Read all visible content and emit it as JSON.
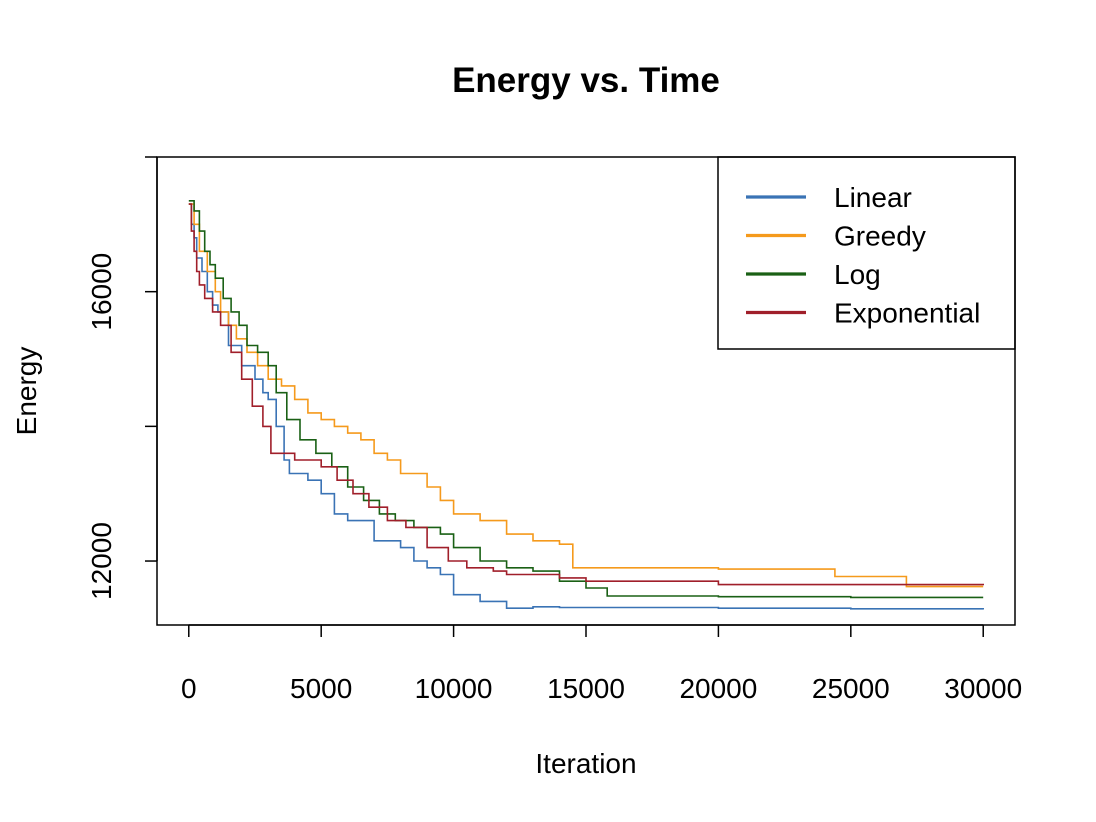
{
  "chart_data": {
    "type": "line",
    "title": "Energy vs. Time",
    "xlabel": "Iteration",
    "ylabel": "Energy",
    "xlim": [
      -1200,
      31200
    ],
    "ylim": [
      11050,
      18000
    ],
    "xticks": [
      0,
      5000,
      10000,
      15000,
      20000,
      25000,
      30000
    ],
    "yticks_labeled": [
      12000,
      16000
    ],
    "yticks": [
      12000,
      14000,
      16000,
      18000
    ],
    "legend_position": "top-right",
    "series": [
      {
        "name": "Linear",
        "color": "#3A73B5",
        "points": [
          [
            0,
            17300
          ],
          [
            100,
            17000
          ],
          [
            200,
            16800
          ],
          [
            300,
            16500
          ],
          [
            500,
            16300
          ],
          [
            700,
            16000
          ],
          [
            900,
            15800
          ],
          [
            1100,
            15700
          ],
          [
            1500,
            15200
          ],
          [
            2000,
            14900
          ],
          [
            2500,
            14700
          ],
          [
            2800,
            14500
          ],
          [
            3000,
            14400
          ],
          [
            3300,
            14000
          ],
          [
            3600,
            13500
          ],
          [
            3800,
            13300
          ],
          [
            4500,
            13200
          ],
          [
            5000,
            13000
          ],
          [
            5500,
            12700
          ],
          [
            6000,
            12600
          ],
          [
            7000,
            12300
          ],
          [
            8000,
            12200
          ],
          [
            8500,
            12000
          ],
          [
            9000,
            11900
          ],
          [
            9500,
            11800
          ],
          [
            10000,
            11500
          ],
          [
            11000,
            11400
          ],
          [
            12000,
            11300
          ],
          [
            13000,
            11320
          ],
          [
            14000,
            11310
          ],
          [
            15000,
            11310
          ],
          [
            20000,
            11300
          ],
          [
            25000,
            11290
          ],
          [
            30000,
            11280
          ]
        ]
      },
      {
        "name": "Greedy",
        "color": "#F59A1C",
        "points": [
          [
            0,
            17300
          ],
          [
            200,
            17000
          ],
          [
            400,
            16600
          ],
          [
            700,
            16300
          ],
          [
            1000,
            16000
          ],
          [
            1200,
            15700
          ],
          [
            1500,
            15500
          ],
          [
            1800,
            15300
          ],
          [
            2200,
            15100
          ],
          [
            2600,
            14900
          ],
          [
            3000,
            14700
          ],
          [
            3500,
            14600
          ],
          [
            4000,
            14400
          ],
          [
            4500,
            14200
          ],
          [
            5000,
            14100
          ],
          [
            5500,
            14000
          ],
          [
            6000,
            13900
          ],
          [
            6500,
            13800
          ],
          [
            7000,
            13600
          ],
          [
            7500,
            13500
          ],
          [
            8000,
            13300
          ],
          [
            9000,
            13100
          ],
          [
            9500,
            12900
          ],
          [
            10000,
            12700
          ],
          [
            11000,
            12600
          ],
          [
            12000,
            12400
          ],
          [
            13000,
            12300
          ],
          [
            14000,
            12250
          ],
          [
            14500,
            11900
          ],
          [
            15000,
            11900
          ],
          [
            20000,
            11880
          ],
          [
            24300,
            11880
          ],
          [
            24400,
            11770
          ],
          [
            27000,
            11770
          ],
          [
            27100,
            11620
          ],
          [
            30000,
            11620
          ]
        ]
      },
      {
        "name": "Log",
        "color": "#1A6015",
        "points": [
          [
            0,
            17350
          ],
          [
            200,
            17200
          ],
          [
            400,
            16900
          ],
          [
            600,
            16600
          ],
          [
            800,
            16400
          ],
          [
            1000,
            16200
          ],
          [
            1300,
            15900
          ],
          [
            1600,
            15700
          ],
          [
            1900,
            15500
          ],
          [
            2200,
            15200
          ],
          [
            2600,
            15100
          ],
          [
            3000,
            14900
          ],
          [
            3300,
            14500
          ],
          [
            3700,
            14100
          ],
          [
            4200,
            13800
          ],
          [
            4800,
            13600
          ],
          [
            5400,
            13400
          ],
          [
            6000,
            13100
          ],
          [
            6600,
            12900
          ],
          [
            7200,
            12700
          ],
          [
            7800,
            12600
          ],
          [
            8500,
            12500
          ],
          [
            9500,
            12400
          ],
          [
            10000,
            12200
          ],
          [
            11000,
            12000
          ],
          [
            12000,
            11900
          ],
          [
            13000,
            11850
          ],
          [
            14000,
            11700
          ],
          [
            15000,
            11600
          ],
          [
            15800,
            11480
          ],
          [
            20000,
            11470
          ],
          [
            25000,
            11460
          ],
          [
            30000,
            11460
          ]
        ]
      },
      {
        "name": "Exponential",
        "color": "#A01F2A",
        "points": [
          [
            0,
            17300
          ],
          [
            100,
            16900
          ],
          [
            200,
            16600
          ],
          [
            300,
            16300
          ],
          [
            400,
            16100
          ],
          [
            600,
            15900
          ],
          [
            900,
            15700
          ],
          [
            1200,
            15500
          ],
          [
            1600,
            15100
          ],
          [
            2000,
            14700
          ],
          [
            2400,
            14300
          ],
          [
            2800,
            14000
          ],
          [
            3100,
            13600
          ],
          [
            4000,
            13500
          ],
          [
            5000,
            13400
          ],
          [
            5600,
            13200
          ],
          [
            6200,
            13000
          ],
          [
            6800,
            12800
          ],
          [
            7500,
            12600
          ],
          [
            8200,
            12500
          ],
          [
            9000,
            12200
          ],
          [
            9800,
            12000
          ],
          [
            10500,
            11900
          ],
          [
            11500,
            11850
          ],
          [
            12000,
            11800
          ],
          [
            13000,
            11800
          ],
          [
            14000,
            11750
          ],
          [
            15000,
            11700
          ],
          [
            20000,
            11650
          ],
          [
            25000,
            11650
          ],
          [
            30000,
            11640
          ]
        ]
      }
    ]
  }
}
